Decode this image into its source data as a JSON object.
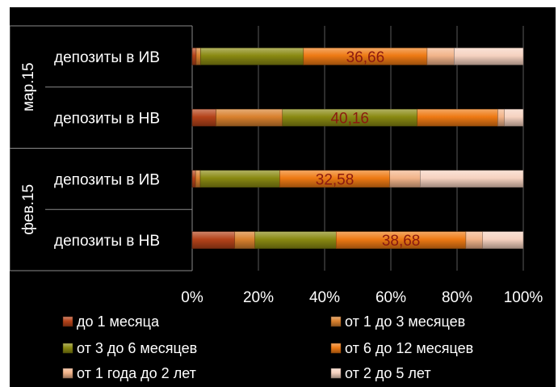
{
  "chart_data": {
    "type": "bar",
    "orientation": "horizontal",
    "stacked": "percent",
    "groups": [
      {
        "name": "мар.15",
        "categories": [
          "депозиты в ИВ",
          "депозиты в НВ"
        ]
      },
      {
        "name": "фев.15",
        "categories": [
          "депозиты в ИВ",
          "депозиты в НВ"
        ]
      }
    ],
    "categories": [
      "депозиты в ИВ",
      "депозиты в НВ",
      "депозиты в ИВ",
      "депозиты в НВ"
    ],
    "series": [
      {
        "name": "до 1 месяца",
        "color": "#b5431a",
        "values": [
          1.2,
          7.1,
          1.0,
          12.7
        ]
      },
      {
        "name": "от 1 до 3 месяцев",
        "color": "#d9812e",
        "values": [
          1.3,
          19.8,
          1.4,
          6.0
        ]
      },
      {
        "name": "от 3 до 6 месяцев",
        "color": "#8a8a12",
        "values": [
          30.5,
          40.16,
          23.5,
          24.2
        ]
      },
      {
        "name": "от 6 до 12 месяцев",
        "color": "#ee7a14",
        "values": [
          36.66,
          24.0,
          32.58,
          38.68
        ]
      },
      {
        "name": "от 1 года до 2 лет",
        "color": "#f2b48a",
        "values": [
          8.0,
          2.0,
          9.0,
          5.0
        ]
      },
      {
        "name": "от 2 до 5 лет",
        "color": "#f6d2c0",
        "values": [
          20.5,
          5.6,
          30.5,
          12.1
        ]
      }
    ],
    "data_labels": [
      {
        "category_index": 0,
        "series_index": 3,
        "text": "36,66"
      },
      {
        "category_index": 1,
        "series_index": 2,
        "text": "40,16"
      },
      {
        "category_index": 2,
        "series_index": 3,
        "text": "32,58"
      },
      {
        "category_index": 3,
        "series_index": 3,
        "text": "38,68"
      }
    ],
    "x_ticks": [
      "0%",
      "20%",
      "40%",
      "60%",
      "80%",
      "100%"
    ],
    "xlim": [
      0,
      100
    ],
    "grid": true,
    "legend_position": "bottom",
    "title": ""
  }
}
